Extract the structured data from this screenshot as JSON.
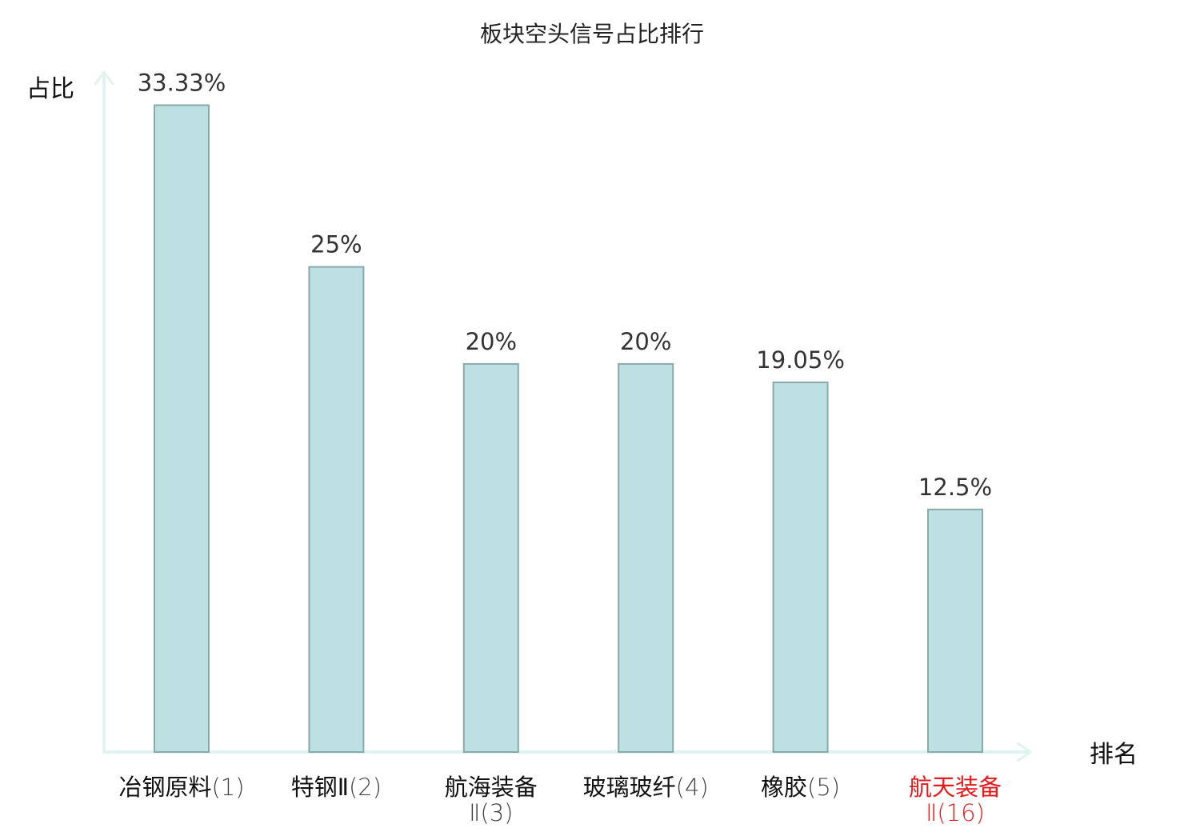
{
  "colors": {
    "bar_fill": "#bde1e3",
    "bar_stroke": "#8aa9ab",
    "axis": "#e0f3f1",
    "value_label": "#333333",
    "category": "#111111",
    "category_rank": "#444444",
    "highlight": "#e8191b",
    "title": "#222222"
  },
  "chart_data": {
    "type": "bar",
    "title": "板块空头信号占比排行",
    "ylabel": "占比",
    "xlabel": "排名",
    "ylim": [
      0,
      35
    ],
    "grid": false,
    "categories": [
      {
        "name": "冶钢原料",
        "rank": "(1)",
        "highlight": false
      },
      {
        "name": "特钢Ⅱ",
        "rank": "(2)",
        "highlight": false
      },
      {
        "name": "航海装备",
        "rank": "Ⅱ(3)",
        "highlight": false,
        "wrap": true
      },
      {
        "name": "玻璃玻纤",
        "rank": "(4)",
        "highlight": false
      },
      {
        "name": "橡胶",
        "rank": "(5)",
        "highlight": false
      },
      {
        "name": "航天装备",
        "rank": "Ⅱ(16)",
        "highlight": true,
        "wrap": true
      }
    ],
    "values": [
      33.33,
      25,
      20,
      20,
      19.05,
      12.5
    ],
    "value_labels": [
      "33.33%",
      "25%",
      "20%",
      "20%",
      "19.05%",
      "12.5%"
    ]
  }
}
